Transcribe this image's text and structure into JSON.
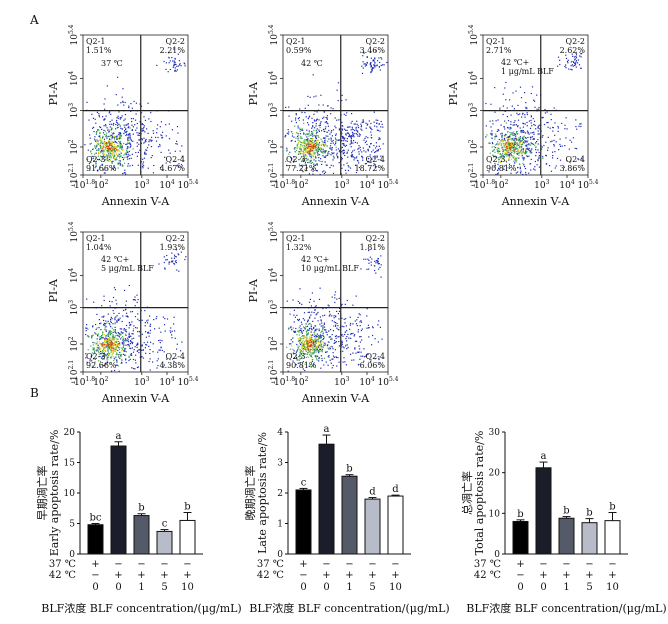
{
  "panel_labels": {
    "a": "A",
    "b": "B"
  },
  "flow": {
    "x_axis_label": "Annexin V-A",
    "y_axis_label": "PI-A",
    "x_ticks": [
      "-10^1.8",
      "10^2",
      "10^3",
      "10^4",
      "10^5.4"
    ],
    "y_ticks": [
      "-10^2.1",
      "10^2",
      "10^3",
      "10^4",
      "10^5.4"
    ],
    "quadrant_names": [
      "Q2-1",
      "Q2-2",
      "Q2-3",
      "Q2-4"
    ]
  },
  "chart_data": [
    {
      "type": "scatter",
      "condition": "37 ℃",
      "quadrant_percent": {
        "Q2-1": "1.51%",
        "Q2-2": "2.21%",
        "Q2-3": "91.66%",
        "Q2-4": "4.67%"
      }
    },
    {
      "type": "scatter",
      "condition": "42 ℃",
      "quadrant_percent": {
        "Q2-1": "0.59%",
        "Q2-2": "3.46%",
        "Q2-3": "77.21%",
        "Q2-4": "18.72%"
      }
    },
    {
      "type": "scatter",
      "condition": "42 ℃+ 1 μg/mL BLF",
      "condition_lines": [
        "42 ℃+",
        "1 μg/mL BLF"
      ],
      "quadrant_percent": {
        "Q2-1": "2.71%",
        "Q2-2": "2.62%",
        "Q2-3": "90.81%",
        "Q2-4": "3.86%"
      }
    },
    {
      "type": "scatter",
      "condition": "42 ℃+ 5 μg/mL BLF",
      "condition_lines": [
        "42 ℃+",
        "5 μg/mL BLF"
      ],
      "quadrant_percent": {
        "Q2-1": "1.04%",
        "Q2-2": "1.93%",
        "Q2-3": "92.66%",
        "Q2-4": "4.38%"
      }
    },
    {
      "type": "scatter",
      "condition": "42 ℃+ 10 μg/mL BLF",
      "condition_lines": [
        "42 ℃+",
        "10 μg/mL BLF"
      ],
      "quadrant_percent": {
        "Q2-1": "1.32%",
        "Q2-2": "1.81%",
        "Q2-3": "90.81%",
        "Q2-4": "6.06%"
      }
    },
    {
      "type": "bar",
      "ylabel_cn": "早期凋亡率",
      "ylabel_en": "Early apoptosis rate/%",
      "ylim": [
        0,
        20
      ],
      "yticks": [
        0,
        5,
        10,
        15,
        20
      ],
      "categories": [
        "0",
        "0",
        "1",
        "5",
        "10"
      ],
      "row_37c": [
        "+",
        "−",
        "−",
        "−",
        "−"
      ],
      "row_42c": [
        "−",
        "+",
        "+",
        "+",
        "+"
      ],
      "values": [
        4.8,
        17.7,
        6.3,
        3.7,
        5.5
      ],
      "errors": [
        0.2,
        0.7,
        0.3,
        0.3,
        1.3
      ],
      "letters": [
        "bc",
        "a",
        "b",
        "c",
        "b"
      ],
      "xlabel": "BLF浓度 BLF concentration/(μg/mL)"
    },
    {
      "type": "bar",
      "ylabel_cn": "晚期凋亡率",
      "ylabel_en": "Late apoptosis rate/%",
      "ylim": [
        0,
        4
      ],
      "yticks": [
        0,
        1,
        2,
        3,
        4
      ],
      "categories": [
        "0",
        "0",
        "1",
        "5",
        "10"
      ],
      "row_37c": [
        "+",
        "−",
        "−",
        "−",
        "−"
      ],
      "row_42c": [
        "−",
        "+",
        "+",
        "+",
        "+"
      ],
      "values": [
        2.1,
        3.6,
        2.55,
        1.8,
        1.9
      ],
      "errors": [
        0.05,
        0.3,
        0.05,
        0.05,
        0.03
      ],
      "letters": [
        "c",
        "a",
        "b",
        "d",
        "d"
      ],
      "xlabel": "BLF浓度 BLF concentration/(μg/mL)"
    },
    {
      "type": "bar",
      "ylabel_cn": "总凋亡率",
      "ylabel_en": "Total apoptosis rate/%",
      "ylim": [
        0,
        30
      ],
      "yticks": [
        0,
        10,
        20,
        30
      ],
      "categories": [
        "0",
        "0",
        "1",
        "5",
        "10"
      ],
      "row_37c": [
        "+",
        "−",
        "−",
        "−",
        "−"
      ],
      "row_42c": [
        "−",
        "+",
        "+",
        "+",
        "+"
      ],
      "values": [
        8.0,
        21.2,
        8.8,
        7.7,
        8.2
      ],
      "errors": [
        0.4,
        1.4,
        0.4,
        1.0,
        2.0
      ],
      "letters": [
        "b",
        "a",
        "b",
        "b",
        "b"
      ],
      "xlabel": "BLF浓度 BLF concentration/(μg/mL)"
    }
  ],
  "bar_row_labels": {
    "r37": "37 ℃",
    "r42": "42 ℃"
  },
  "colors": {
    "bars": [
      "#000000",
      "#1b1e2a",
      "#555a68",
      "#b8bcc8",
      "#ffffff"
    ],
    "scatter_low": "#1c2ab4",
    "scatter_mid": "#3fb04b",
    "scatter_high": "#e5d21c",
    "scatter_peak": "#d93a18"
  }
}
